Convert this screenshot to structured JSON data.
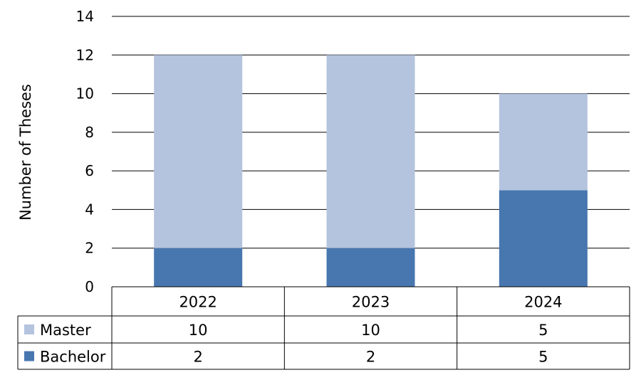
{
  "chart_data": {
    "type": "bar",
    "stacked": true,
    "categories": [
      "2022",
      "2023",
      "2024"
    ],
    "series": [
      {
        "name": "Bachelor",
        "values": [
          2,
          2,
          5
        ],
        "color": "#4877b0"
      },
      {
        "name": "Master",
        "values": [
          10,
          10,
          5
        ],
        "color": "#b4c3de"
      }
    ],
    "ylabel": "Number of Theses",
    "ylim": [
      0,
      14
    ],
    "yticks": [
      "0",
      "2",
      "4",
      "6",
      "8",
      "10",
      "12",
      "14"
    ],
    "grid": true,
    "data_table": {
      "rows": [
        {
          "label": "Master",
          "values": [
            "10",
            "10",
            "5"
          ]
        },
        {
          "label": "Bachelor",
          "values": [
            "2",
            "2",
            "5"
          ]
        }
      ]
    }
  }
}
